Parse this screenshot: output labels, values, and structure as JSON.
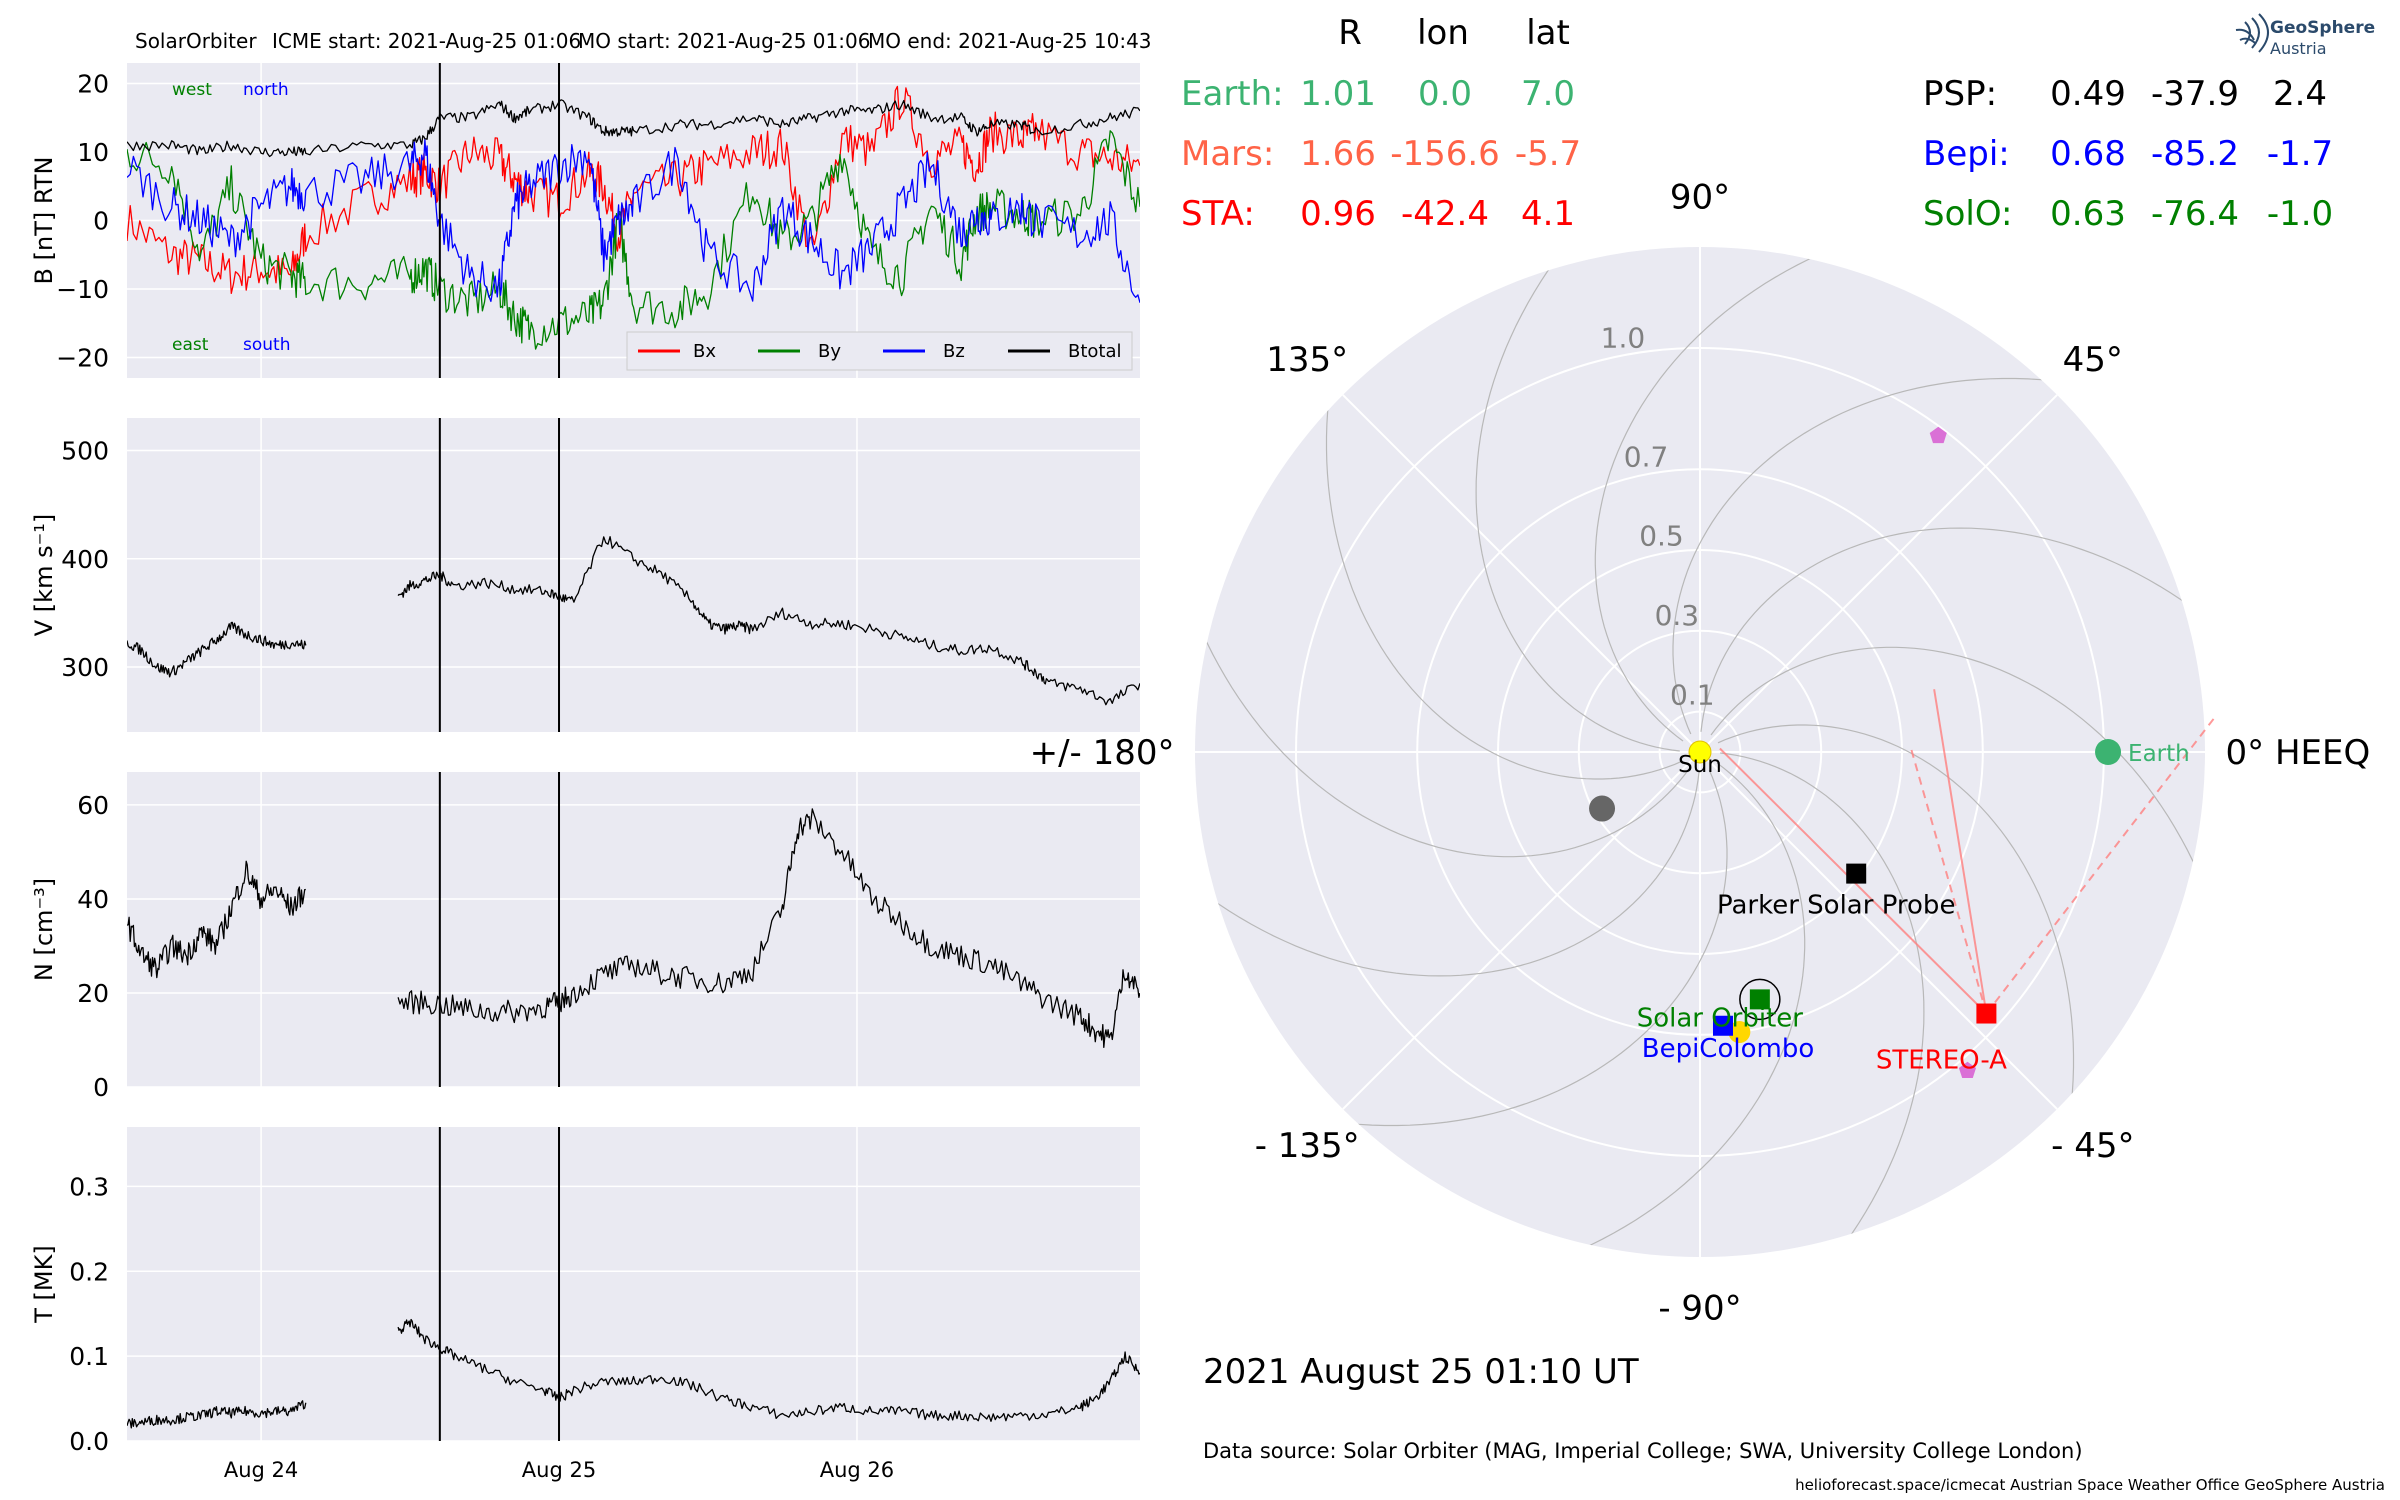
{
  "header": {
    "spacecraft": "SolarOrbiter",
    "icme_start": "ICME start: 2021-Aug-25 01:06",
    "mo_start": "MO start: 2021-Aug-25 01:06",
    "mo_end": "MO end: 2021-Aug-25 10:43"
  },
  "colors": {
    "bx": "#ff0000",
    "by": "#008000",
    "bz": "#0000ff",
    "btotal": "#000000",
    "earth": "#3cb371",
    "mars": "#ff6347",
    "sta": "#ff0000",
    "psp": "#000000",
    "bepi": "#0000ff",
    "solo": "#008000",
    "panel_bg": "#eaeaf2",
    "grid": "#ffffff"
  },
  "chart_data": [
    {
      "type": "line",
      "ylabel": "B [nT] RTN",
      "ylim": [
        -23,
        23
      ],
      "yticks": [
        "20",
        "10",
        "0",
        "−10",
        "−20"
      ],
      "yticks_values": [
        20,
        10,
        0,
        -10,
        -20
      ],
      "annotations": {
        "west": "west",
        "north": "north",
        "east": "east",
        "south": "south"
      },
      "legend": {
        "position": "bottom-right",
        "entries": [
          "Bx",
          "By",
          "Bz",
          "Btotal"
        ]
      },
      "series": [
        {
          "name": "Bx",
          "x": [
            0,
            0.15,
            0.25,
            0.35,
            0.45,
            0.55,
            0.6,
            0.8,
            0.95,
            1.0,
            1.05,
            1.15,
            1.25,
            1.3,
            1.35,
            1.45,
            1.55,
            1.6,
            1.65,
            1.7,
            1.85,
            1.95,
            2.1,
            2.2,
            2.3,
            2.4,
            2.5,
            2.6,
            2.7,
            2.8,
            2.85,
            2.9,
            3.0,
            3.05,
            3.2,
            3.3,
            3.4
          ],
          "y": [
            0,
            -5,
            -6,
            -8,
            -7,
            -8,
            -2,
            3,
            6,
            7,
            5,
            10,
            9,
            6,
            4,
            3,
            7,
            5,
            -2,
            4,
            6,
            8,
            10,
            11,
            -5,
            12,
            10,
            18,
            9,
            11,
            8,
            13,
            12,
            13,
            10,
            9,
            8
          ]
        },
        {
          "name": "By",
          "x": [
            0,
            0.15,
            0.25,
            0.35,
            0.45,
            0.55,
            0.6,
            0.8,
            0.95,
            1.0,
            1.05,
            1.15,
            1.25,
            1.3,
            1.35,
            1.45,
            1.55,
            1.6,
            1.65,
            1.7,
            1.85,
            1.95,
            2.1,
            2.2,
            2.3,
            2.4,
            2.5,
            2.6,
            2.7,
            2.8,
            2.85,
            2.9,
            3.0,
            3.05,
            3.2,
            3.3,
            3.4
          ],
          "y": [
            10,
            8,
            -5,
            5,
            -6,
            -8,
            -9,
            -9,
            -8,
            -7,
            -10,
            -12,
            -10,
            -14,
            -16,
            -15,
            -14,
            -12,
            0,
            -12,
            -13,
            -10,
            5,
            -3,
            0,
            10,
            -5,
            -8,
            2,
            -6,
            1,
            2,
            1,
            0,
            1,
            12,
            2
          ]
        },
        {
          "name": "Bz",
          "x": [
            0,
            0.15,
            0.25,
            0.35,
            0.45,
            0.55,
            0.6,
            0.8,
            0.95,
            1.0,
            1.05,
            1.15,
            1.25,
            1.3,
            1.35,
            1.45,
            1.55,
            1.6,
            1.65,
            1.7,
            1.85,
            1.95,
            2.1,
            2.2,
            2.3,
            2.4,
            2.5,
            2.6,
            2.7,
            2.8,
            2.85,
            2.9,
            3.0,
            3.05,
            3.2,
            3.3,
            3.4
          ],
          "y": [
            8,
            2,
            0,
            -3,
            2,
            5,
            4,
            6,
            8,
            10,
            0,
            -8,
            -10,
            2,
            5,
            8,
            10,
            -5,
            0,
            2,
            9,
            -5,
            -10,
            2,
            -3,
            -8,
            -4,
            2,
            8,
            -2,
            1,
            0,
            2,
            0,
            -2,
            0,
            -12
          ]
        },
        {
          "name": "Btotal",
          "x": [
            0,
            0.15,
            0.25,
            0.35,
            0.45,
            0.55,
            0.6,
            0.8,
            0.95,
            1.0,
            1.05,
            1.15,
            1.25,
            1.3,
            1.35,
            1.45,
            1.55,
            1.6,
            1.65,
            1.7,
            1.85,
            1.95,
            2.1,
            2.2,
            2.3,
            2.4,
            2.5,
            2.6,
            2.7,
            2.8,
            2.85,
            2.9,
            3.0,
            3.05,
            3.2,
            3.3,
            3.4
          ],
          "y": [
            11,
            11,
            10,
            11,
            10,
            10,
            10,
            11,
            11,
            12,
            15,
            15,
            17,
            15,
            16,
            17,
            15,
            13,
            13,
            13,
            14,
            14,
            15,
            14,
            15,
            16,
            16,
            17,
            15,
            15,
            13,
            14,
            14,
            13,
            14,
            15,
            16
          ]
        }
      ]
    },
    {
      "type": "line",
      "ylabel": "V [km s⁻¹]",
      "ylim": [
        240,
        530
      ],
      "yticks": [
        "500",
        "400",
        "300"
      ],
      "yticks_values": [
        500,
        400,
        300
      ],
      "series": [
        {
          "name": "V",
          "x": [
            0,
            0.05,
            0.1,
            0.15,
            0.2,
            0.25,
            0.3,
            0.35,
            0.4,
            0.45,
            0.5,
            0.55,
            0.6
          ],
          "y": [
            323,
            315,
            300,
            295,
            305,
            315,
            325,
            337,
            330,
            325,
            320,
            322,
            320
          ]
        },
        {
          "name": "V2",
          "x": [
            0.91,
            0.95,
            1.0,
            1.05,
            1.1,
            1.2,
            1.3,
            1.4,
            1.45,
            1.5,
            1.6,
            1.7,
            1.8,
            1.9,
            1.95,
            2.0,
            2.05,
            2.1,
            2.2,
            2.3,
            2.4,
            2.5,
            2.6,
            2.7,
            2.8,
            2.9,
            3.0,
            3.05,
            3.1,
            3.2,
            3.3,
            3.4
          ],
          "y": [
            365,
            375,
            380,
            385,
            375,
            378,
            372,
            370,
            365,
            360,
            420,
            400,
            385,
            360,
            340,
            335,
            338,
            335,
            350,
            340,
            340,
            335,
            328,
            320,
            315,
            318,
            305,
            295,
            285,
            280,
            268,
            285
          ]
        }
      ]
    },
    {
      "type": "line",
      "ylabel": "N [cm⁻³]",
      "ylim": [
        0,
        67
      ],
      "yticks": [
        "60",
        "40",
        "20",
        "0"
      ],
      "yticks_values": [
        60,
        40,
        20,
        0
      ],
      "series": [
        {
          "name": "N",
          "x": [
            0,
            0.05,
            0.1,
            0.15,
            0.2,
            0.25,
            0.3,
            0.35,
            0.4,
            0.45,
            0.5,
            0.55,
            0.6
          ],
          "y": [
            35,
            28,
            25,
            30,
            28,
            33,
            30,
            38,
            46,
            40,
            42,
            38,
            42
          ]
        },
        {
          "name": "N2",
          "x": [
            0.91,
            1.0,
            1.1,
            1.2,
            1.3,
            1.4,
            1.45,
            1.5,
            1.6,
            1.7,
            1.8,
            1.9,
            2.0,
            2.1,
            2.2,
            2.25,
            2.3,
            2.4,
            2.5,
            2.6,
            2.7,
            2.8,
            2.9,
            3.0,
            3.1,
            3.2,
            3.25,
            3.3,
            3.35,
            3.4
          ],
          "y": [
            18,
            18,
            17,
            16,
            16,
            17,
            18,
            20,
            24,
            26,
            24,
            23,
            22,
            25,
            38,
            55,
            57,
            50,
            40,
            35,
            30,
            28,
            26,
            22,
            18,
            15,
            12,
            10,
            25,
            20
          ]
        }
      ]
    },
    {
      "type": "line",
      "ylabel": "T [MK]",
      "xticks": [
        "Aug 24",
        "Aug 25",
        "Aug 26"
      ],
      "xticks_values": [
        0.45,
        1.45,
        2.45
      ],
      "ylim": [
        0,
        0.37
      ],
      "yticks": [
        "0.3",
        "0.2",
        "0.1",
        "0.0"
      ],
      "yticks_values": [
        0.3,
        0.2,
        0.1,
        0.0
      ],
      "series": [
        {
          "name": "T",
          "x": [
            0,
            0.05,
            0.1,
            0.15,
            0.2,
            0.25,
            0.3,
            0.35,
            0.4,
            0.45,
            0.5,
            0.55,
            0.6
          ],
          "y": [
            0.02,
            0.022,
            0.025,
            0.025,
            0.028,
            0.03,
            0.035,
            0.033,
            0.035,
            0.033,
            0.035,
            0.035,
            0.045
          ]
        },
        {
          "name": "T2",
          "x": [
            0.91,
            0.95,
            1.0,
            1.05,
            1.1,
            1.2,
            1.3,
            1.4,
            1.45,
            1.5,
            1.6,
            1.7,
            1.8,
            1.9,
            2.0,
            2.1,
            2.2,
            2.3,
            2.4,
            2.5,
            2.6,
            2.7,
            2.8,
            2.9,
            3.0,
            3.1,
            3.2,
            3.25,
            3.3,
            3.35,
            3.4
          ],
          "y": [
            0.13,
            0.14,
            0.12,
            0.11,
            0.1,
            0.085,
            0.07,
            0.06,
            0.05,
            0.06,
            0.07,
            0.07,
            0.075,
            0.065,
            0.05,
            0.04,
            0.03,
            0.035,
            0.04,
            0.035,
            0.035,
            0.03,
            0.03,
            0.028,
            0.03,
            0.032,
            0.04,
            0.05,
            0.07,
            0.1,
            0.08
          ]
        }
      ]
    },
    {
      "type": "scatter",
      "projection": "polar",
      "r_labels": [
        "1.0",
        "0.7",
        "0.5",
        "0.3",
        "0.1"
      ],
      "r_values": [
        1.0,
        0.7,
        0.5,
        0.3,
        0.1
      ],
      "angle_labels": [
        {
          "label": "0° HEEQ",
          "angle": 0
        },
        {
          "label": "45°",
          "angle": 45
        },
        {
          "label": "90°",
          "angle": 90
        },
        {
          "label": "135°",
          "angle": 135
        },
        {
          "label": "+/- 180°",
          "angle": 180
        },
        {
          "label": "- 135°",
          "angle": -135
        },
        {
          "label": "- 90°",
          "angle": -90
        },
        {
          "label": "- 45°",
          "angle": -45
        }
      ],
      "bodies": [
        {
          "name": "Sun",
          "r": 0.0,
          "lon": 0.0,
          "color": "#ffff00",
          "marker": "circle",
          "label": "Sun",
          "label_color": "#000000"
        },
        {
          "name": "Earth",
          "r": 1.01,
          "lon": 0.0,
          "color": "#3cb371",
          "marker": "circle",
          "label": "Earth",
          "label_color": "#3cb371"
        },
        {
          "name": "Parker Solar Probe",
          "r": 0.49,
          "lon": -37.9,
          "color": "#000000",
          "marker": "square",
          "label": "Parker Solar Probe",
          "label_color": "#000000"
        },
        {
          "name": "STEREO-A",
          "r": 0.96,
          "lon": -42.4,
          "color": "#ff0000",
          "marker": "square",
          "label": "STEREO-A",
          "label_color": "#ff0000"
        },
        {
          "name": "BepiColombo",
          "r": 0.68,
          "lon": -85.2,
          "color": "#0000ff",
          "marker": "square",
          "label": "BepiColombo",
          "label_color": "#0000ff"
        },
        {
          "name": "Solar Orbiter",
          "r": 0.63,
          "lon": -76.4,
          "color": "#008000",
          "marker": "square",
          "label": "Solar Orbiter",
          "label_color": "#008000"
        }
      ]
    }
  ],
  "positions_table": {
    "headers": [
      "R",
      "lon",
      "lat"
    ],
    "left_rows": [
      {
        "name": "Earth:",
        "r": "1.01",
        "lon": "0.0",
        "lat": "7.0",
        "color": "#3cb371"
      },
      {
        "name": "Mars:",
        "r": "1.66",
        "lon": "-156.6",
        "lat": "-5.7",
        "color": "#ff6347"
      },
      {
        "name": "STA:",
        "r": "0.96",
        "lon": "-42.4",
        "lat": "4.1",
        "color": "#ff0000"
      }
    ],
    "right_rows": [
      {
        "name": "PSP:",
        "r": "0.49",
        "lon": "-37.9",
        "lat": "2.4",
        "color": "#000000"
      },
      {
        "name": "Bepi:",
        "r": "0.68",
        "lon": "-85.2",
        "lat": "-1.7",
        "color": "#0000ff"
      },
      {
        "name": "SolO:",
        "r": "0.63",
        "lon": "-76.4",
        "lat": "-1.0",
        "color": "#008000"
      }
    ]
  },
  "footer": {
    "datetime": "2021 August 25  01:10 UT",
    "source": "Data source: Solar Orbiter (MAG, Imperial College; SWA, University College London)",
    "credits": "helioforecast.space/icmecat   Austrian Space Weather Office   GeoSphere Austria"
  },
  "logo": {
    "line1": "GeoSphere",
    "line2": "Austria"
  }
}
